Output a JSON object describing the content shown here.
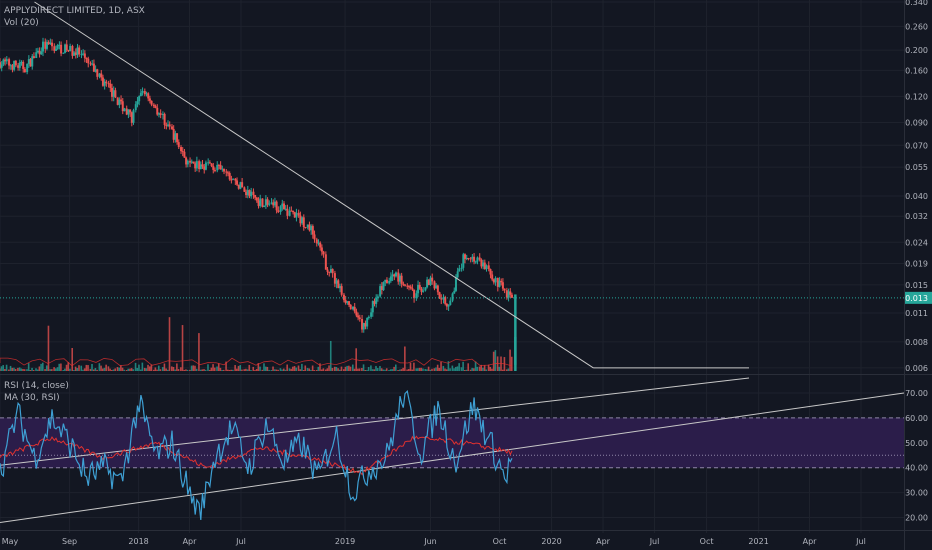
{
  "header": {
    "symbol": "APPLYDIRECT LIMITED, 1D, ASX",
    "volume_label": "Vol (20)"
  },
  "rsi_pane": {
    "rsi_label": "RSI (14, close)",
    "ma_label": "MA (30, RSI)"
  },
  "colors": {
    "background": "#131722",
    "grid": "#1e222d",
    "up": "#26a69a",
    "down": "#ef5350",
    "rsi": "#3ea0d4",
    "rsi_ma": "#e0312f",
    "rsi_band": "#2b1d4a",
    "price_tag": "#26a69a",
    "trendline": "#c8c8c8"
  },
  "chart_data": [
    {
      "type": "candlestick",
      "y_scale": "log",
      "y_ticks": [
        "0.340",
        "0.260",
        "0.200",
        "0.160",
        "0.120",
        "0.090",
        "0.070",
        "0.055",
        "0.040",
        "0.032",
        "0.024",
        "0.019",
        "0.015",
        "0.011",
        "0.008",
        "0.006"
      ],
      "y_tick_values": [
        0.34,
        0.26,
        0.2,
        0.16,
        0.12,
        0.09,
        0.07,
        0.055,
        0.04,
        0.032,
        0.024,
        0.019,
        0.015,
        0.011,
        0.008,
        0.006
      ],
      "ylim": [
        0.0058,
        0.34
      ],
      "last_price": "0.013",
      "last_price_value": 0.013,
      "x_ticks": [
        "May",
        "Sep",
        "2018",
        "Apr",
        "Jul",
        "2019",
        "Jun",
        "Oct",
        "2020",
        "Apr",
        "Jul",
        "Oct",
        "2021",
        "Apr",
        "Jul"
      ],
      "x_tick_dates": [
        "2017-05-01",
        "2017-09-01",
        "2018-01-01",
        "2018-04-01",
        "2018-07-01",
        "2019-01-01",
        "2019-06-01",
        "2019-10-01",
        "2020-01-01",
        "2020-04-01",
        "2020-07-01",
        "2020-10-01",
        "2021-01-01",
        "2021-04-01",
        "2021-07-01"
      ],
      "xlim": [
        "2017-05-01",
        "2021-09-15"
      ],
      "price_path": [
        {
          "date": "2017-05-01",
          "close": 0.175
        },
        {
          "date": "2017-06-15",
          "close": 0.165
        },
        {
          "date": "2017-07-15",
          "close": 0.21
        },
        {
          "date": "2017-08-15",
          "close": 0.205
        },
        {
          "date": "2017-09-15",
          "close": 0.195
        },
        {
          "date": "2017-10-20",
          "close": 0.155
        },
        {
          "date": "2017-11-20",
          "close": 0.12
        },
        {
          "date": "2017-12-20",
          "close": 0.095
        },
        {
          "date": "2018-01-10",
          "close": 0.13
        },
        {
          "date": "2018-02-01",
          "close": 0.105
        },
        {
          "date": "2018-03-01",
          "close": 0.082
        },
        {
          "date": "2018-04-01",
          "close": 0.055
        },
        {
          "date": "2018-05-01",
          "close": 0.057
        },
        {
          "date": "2018-06-01",
          "close": 0.052
        },
        {
          "date": "2018-07-01",
          "close": 0.044
        },
        {
          "date": "2018-08-01",
          "close": 0.038
        },
        {
          "date": "2018-09-01",
          "close": 0.036
        },
        {
          "date": "2018-10-01",
          "close": 0.033
        },
        {
          "date": "2018-11-01",
          "close": 0.028
        },
        {
          "date": "2018-12-01",
          "close": 0.018
        },
        {
          "date": "2019-01-01",
          "close": 0.013
        },
        {
          "date": "2019-02-01",
          "close": 0.0092
        },
        {
          "date": "2019-03-01",
          "close": 0.014
        },
        {
          "date": "2019-04-01",
          "close": 0.017
        },
        {
          "date": "2019-05-01",
          "close": 0.0135
        },
        {
          "date": "2019-06-01",
          "close": 0.016
        },
        {
          "date": "2019-07-01",
          "close": 0.012
        },
        {
          "date": "2019-08-01",
          "close": 0.021
        },
        {
          "date": "2019-09-01",
          "close": 0.019
        },
        {
          "date": "2019-10-01",
          "close": 0.015
        },
        {
          "date": "2019-10-25",
          "close": 0.013
        }
      ],
      "price_trendline": [
        {
          "date": "2017-07-01",
          "value": 0.34
        },
        {
          "date": "2020-03-15",
          "value": 0.006
        }
      ]
    },
    {
      "type": "line",
      "title": "RSI (14, close)",
      "y_ticks": [
        "70.00",
        "60.00",
        "50.00",
        "40.00",
        "30.00",
        "20.00"
      ],
      "y_tick_values": [
        70,
        60,
        50,
        40,
        30,
        20
      ],
      "ylim": [
        17,
        76
      ],
      "band": [
        40,
        60
      ],
      "rsi_path": [
        {
          "date": "2017-05-01",
          "value": 38
        },
        {
          "date": "2017-06-01",
          "value": 62
        },
        {
          "date": "2017-07-01",
          "value": 44
        },
        {
          "date": "2017-08-01",
          "value": 60
        },
        {
          "date": "2017-09-01",
          "value": 50
        },
        {
          "date": "2017-10-01",
          "value": 36
        },
        {
          "date": "2017-11-01",
          "value": 40
        },
        {
          "date": "2017-12-01",
          "value": 34
        },
        {
          "date": "2018-01-01",
          "value": 66
        },
        {
          "date": "2018-02-01",
          "value": 45
        },
        {
          "date": "2018-03-01",
          "value": 50
        },
        {
          "date": "2018-04-01",
          "value": 30
        },
        {
          "date": "2018-04-20",
          "value": 21
        },
        {
          "date": "2018-05-15",
          "value": 44
        },
        {
          "date": "2018-06-15",
          "value": 56
        },
        {
          "date": "2018-07-15",
          "value": 40
        },
        {
          "date": "2018-08-15",
          "value": 58
        },
        {
          "date": "2018-09-15",
          "value": 42
        },
        {
          "date": "2018-10-15",
          "value": 50
        },
        {
          "date": "2018-11-15",
          "value": 36
        },
        {
          "date": "2018-12-15",
          "value": 54
        },
        {
          "date": "2019-01-15",
          "value": 30
        },
        {
          "date": "2019-02-15",
          "value": 40
        },
        {
          "date": "2019-03-15",
          "value": 44
        },
        {
          "date": "2019-04-15",
          "value": 70
        },
        {
          "date": "2019-05-15",
          "value": 46
        },
        {
          "date": "2019-06-15",
          "value": 64
        },
        {
          "date": "2019-07-15",
          "value": 42
        },
        {
          "date": "2019-08-15",
          "value": 65
        },
        {
          "date": "2019-09-15",
          "value": 50
        },
        {
          "date": "2019-10-10",
          "value": 36
        },
        {
          "date": "2019-10-25",
          "value": 44
        }
      ],
      "ma_path": [
        {
          "date": "2017-05-01",
          "value": 44
        },
        {
          "date": "2017-08-01",
          "value": 52
        },
        {
          "date": "2017-11-01",
          "value": 44
        },
        {
          "date": "2018-02-01",
          "value": 50
        },
        {
          "date": "2018-05-01",
          "value": 40
        },
        {
          "date": "2018-08-01",
          "value": 48
        },
        {
          "date": "2018-11-01",
          "value": 44
        },
        {
          "date": "2019-02-01",
          "value": 38
        },
        {
          "date": "2019-05-01",
          "value": 52
        },
        {
          "date": "2019-08-01",
          "value": 50
        },
        {
          "date": "2019-10-25",
          "value": 46
        }
      ],
      "upper_trendline": [
        {
          "date": "2017-05-01",
          "value": 41
        },
        {
          "date": "2020-12-15",
          "value": 76
        }
      ],
      "lower_trendline": [
        {
          "date": "2017-05-01",
          "value": 18
        },
        {
          "date": "2021-09-15",
          "value": 70
        }
      ]
    }
  ]
}
